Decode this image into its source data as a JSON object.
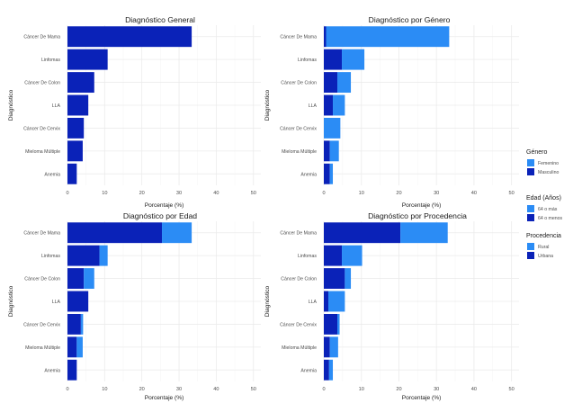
{
  "colors": {
    "dark": "#0a22b8",
    "light": "#2b8cf5",
    "grid": "#ebebeb",
    "grid_minor": "#f4f4f4",
    "text": "#4d4d4d",
    "title": "#1a1a1a"
  },
  "legends": {
    "genero": {
      "title": "Género",
      "items": [
        {
          "label": "Femenino",
          "color": "light"
        },
        {
          "label": "Masculino",
          "color": "dark"
        }
      ]
    },
    "edad": {
      "title": "Edad (Años)",
      "items": [
        {
          "label": "64 o más",
          "color": "light"
        },
        {
          "label": "64 o menos",
          "color": "dark"
        }
      ]
    },
    "procedencia": {
      "title": "Procedencia",
      "items": [
        {
          "label": "Rural",
          "color": "light"
        },
        {
          "label": "Urbana",
          "color": "dark"
        }
      ]
    }
  },
  "chart_data": [
    {
      "id": "general",
      "type": "bar",
      "orientation": "horizontal",
      "title": "Diagnóstico General",
      "xlabel": "Porcentaje (%)",
      "ylabel": "Diagnóstico",
      "xlim": [
        0,
        52
      ],
      "xticks": [
        0,
        10,
        20,
        30,
        40,
        50
      ],
      "categories": [
        "Cáncer De Mama",
        "Linfomas",
        "Cáncer De Colon",
        "LLA",
        "Cáncer De Cervix",
        "Mieloma Múltiple",
        "Anemia"
      ],
      "series": [
        {
          "name": "Total",
          "color": "dark",
          "values": [
            33.4,
            10.8,
            7.2,
            5.6,
            4.4,
            4.1,
            2.5
          ]
        }
      ]
    },
    {
      "id": "genero",
      "type": "bar",
      "stacked": true,
      "orientation": "horizontal",
      "title": "Diagnóstico por Género",
      "xlabel": "Porcentaje (%)",
      "ylabel": "Diagnóstico",
      "xlim": [
        0,
        52
      ],
      "xticks": [
        0,
        10,
        20,
        30,
        40,
        50
      ],
      "categories": [
        "Cáncer De Mama",
        "Linfomas",
        "Cáncer De Colon",
        "LLA",
        "Cáncer De Cervix",
        "Mieloma Múltiple",
        "Anemia"
      ],
      "series": [
        {
          "name": "Masculino",
          "color": "dark",
          "values": [
            0.6,
            4.8,
            3.6,
            2.4,
            0,
            1.6,
            1.6
          ]
        },
        {
          "name": "Femenino",
          "color": "light",
          "values": [
            32.8,
            6.0,
            3.6,
            3.2,
            4.4,
            2.4,
            0.8
          ]
        }
      ]
    },
    {
      "id": "edad",
      "type": "bar",
      "stacked": true,
      "orientation": "horizontal",
      "title": "Diagnóstico por Edad",
      "xlabel": "Porcentaje (%)",
      "ylabel": "Diagnóstico",
      "xlim": [
        0,
        52
      ],
      "xticks": [
        0,
        10,
        20,
        30,
        40,
        50
      ],
      "categories": [
        "Cáncer De Mama",
        "Linfomas",
        "Cáncer De Colon",
        "LLA",
        "Cáncer De Cervix",
        "Mieloma Múltiple",
        "Anemia"
      ],
      "series": [
        {
          "name": "64 o menos",
          "color": "dark",
          "values": [
            25.4,
            8.6,
            4.4,
            5.6,
            3.6,
            2.5,
            2.5
          ]
        },
        {
          "name": "64 o más",
          "color": "light",
          "values": [
            8.0,
            2.2,
            2.8,
            0,
            0.6,
            1.6,
            0
          ]
        }
      ]
    },
    {
      "id": "procedencia",
      "type": "bar",
      "stacked": true,
      "orientation": "horizontal",
      "title": "Diagnóstico por Procedencia",
      "xlabel": "Porcentaje (%)",
      "ylabel": "Diagnóstico",
      "xlim": [
        0,
        52
      ],
      "xticks": [
        0,
        10,
        20,
        30,
        40,
        50
      ],
      "categories": [
        "Cáncer De Mama",
        "Linfomas",
        "Cáncer De Colon",
        "LLA",
        "Cáncer De Cervix",
        "Mieloma Múltiple",
        "Anemia"
      ],
      "series": [
        {
          "name": "Urbana",
          "color": "dark",
          "values": [
            20.4,
            4.8,
            5.6,
            1.2,
            3.6,
            1.6,
            1.4
          ]
        },
        {
          "name": "Rural",
          "color": "light",
          "values": [
            12.6,
            5.4,
            1.6,
            4.4,
            0.6,
            2.2,
            1.0
          ]
        }
      ]
    }
  ]
}
